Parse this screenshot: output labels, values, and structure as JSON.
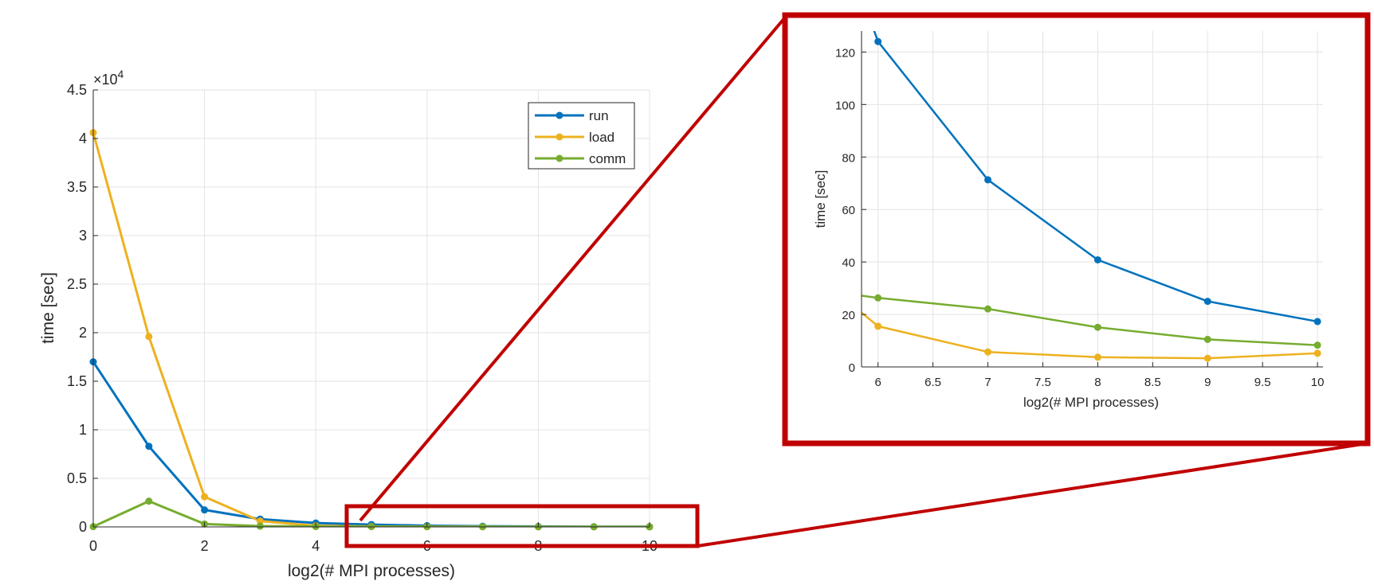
{
  "chart_data": [
    {
      "type": "line",
      "title": "",
      "xlabel": "log2(# MPI processes)",
      "ylabel": "time [sec]",
      "exponent_label": "×10",
      "exponent_power": "4",
      "xlim": [
        0,
        10
      ],
      "ylim": [
        0,
        45000
      ],
      "x_ticks": [
        "0",
        "2",
        "4",
        "6",
        "8",
        "10"
      ],
      "y_ticks": [
        "0",
        "0.5",
        "1",
        "1.5",
        "2",
        "2.5",
        "3",
        "3.5",
        "4",
        "4.5"
      ],
      "grid": true,
      "legend_position": "top-right",
      "x": [
        0,
        1,
        2,
        3,
        4,
        5,
        6,
        7,
        8,
        9,
        10
      ],
      "series": [
        {
          "name": "run",
          "color": "#0072BD",
          "values": [
            17000,
            8300,
            1750,
            800,
            400,
            240,
            124,
            71,
            41,
            25,
            17
          ]
        },
        {
          "name": "load",
          "color": "#EDB120",
          "values": [
            40600,
            19600,
            3100,
            600,
            120,
            50,
            15.5,
            5.5,
            3.5,
            3.2,
            5
          ]
        },
        {
          "name": "comm",
          "color": "#77AC30",
          "values": [
            30,
            2650,
            300,
            80,
            40,
            32,
            26,
            22,
            15,
            10.5,
            8.3
          ]
        }
      ]
    },
    {
      "type": "line",
      "title": "",
      "xlabel": "log2(# MPI processes)",
      "ylabel": "time [sec]",
      "xlim": [
        5.85,
        10.05
      ],
      "ylim": [
        0,
        128
      ],
      "x_ticks": [
        "6",
        "6.5",
        "7",
        "7.5",
        "8",
        "8.5",
        "9",
        "9.5",
        "10"
      ],
      "y_ticks": [
        "0",
        "20",
        "40",
        "60",
        "80",
        "100",
        "120"
      ],
      "grid": true,
      "x": [
        6,
        7,
        8,
        9,
        10
      ],
      "series": [
        {
          "name": "run",
          "color": "#0072BD",
          "values": [
            124,
            71.3,
            40.8,
            25,
            17.3
          ]
        },
        {
          "name": "load",
          "color": "#EDB120",
          "values": [
            15.5,
            5.7,
            3.7,
            3.3,
            5.2
          ]
        },
        {
          "name": "comm",
          "color": "#77AC30",
          "values": [
            26.3,
            22.1,
            15.1,
            10.5,
            8.3
          ]
        }
      ]
    }
  ],
  "zoom_color": "#C00000"
}
